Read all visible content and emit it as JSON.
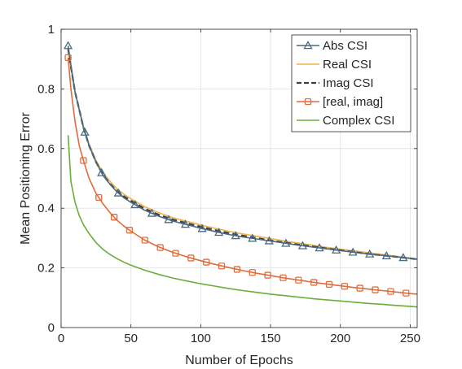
{
  "chart_data": {
    "type": "line",
    "title": "",
    "xlabel": "Number of Epochs",
    "ylabel": "Mean Positioning Error",
    "xlim": [
      0,
      255
    ],
    "ylim": [
      0,
      1
    ],
    "xticks": [
      0,
      50,
      100,
      150,
      200,
      250
    ],
    "yticks": [
      0,
      0.2,
      0.4,
      0.6,
      0.8,
      1
    ],
    "xtick_labels": [
      "0",
      "50",
      "100",
      "150",
      "200",
      "250"
    ],
    "ytick_labels": [
      "0",
      "0.2",
      "0.4",
      "0.6",
      "0.8",
      "1"
    ],
    "grid": true,
    "legend_position": "top-right",
    "series": [
      {
        "name": "Abs CSI",
        "color": "#4a6b82",
        "style": "solid",
        "marker": "triangle",
        "x": [
          5,
          7,
          10,
          13,
          16,
          20,
          25,
          30,
          35,
          40,
          45,
          50,
          60,
          70,
          80,
          90,
          100,
          110,
          120,
          130,
          140,
          150,
          160,
          170,
          180,
          190,
          200,
          210,
          220,
          230,
          240,
          250,
          255
        ],
        "y": [
          0.945,
          0.88,
          0.79,
          0.73,
          0.67,
          0.61,
          0.555,
          0.51,
          0.48,
          0.455,
          0.435,
          0.42,
          0.393,
          0.373,
          0.357,
          0.345,
          0.333,
          0.322,
          0.312,
          0.304,
          0.297,
          0.29,
          0.283,
          0.276,
          0.27,
          0.264,
          0.258,
          0.252,
          0.247,
          0.242,
          0.237,
          0.232,
          0.229
        ],
        "marker_x": [
          5,
          17,
          29,
          41,
          53,
          65,
          77,
          89,
          101,
          113,
          125,
          137,
          149,
          161,
          173,
          185,
          197,
          209,
          221,
          233,
          245
        ]
      },
      {
        "name": "Real CSI",
        "color": "#f2b24a",
        "style": "solid",
        "marker": "none",
        "x": [
          5,
          7,
          10,
          13,
          16,
          20,
          25,
          30,
          35,
          40,
          45,
          50,
          60,
          70,
          80,
          90,
          100,
          110,
          120,
          130,
          140,
          150,
          160,
          170,
          180,
          190,
          200,
          210,
          220,
          230,
          240,
          250,
          255
        ],
        "y": [
          0.93,
          0.87,
          0.79,
          0.73,
          0.675,
          0.615,
          0.56,
          0.52,
          0.49,
          0.465,
          0.447,
          0.432,
          0.405,
          0.385,
          0.368,
          0.356,
          0.344,
          0.333,
          0.323,
          0.314,
          0.306,
          0.298,
          0.29,
          0.283,
          0.276,
          0.269,
          0.263,
          0.257,
          0.251,
          0.245,
          0.239,
          0.233,
          0.23
        ]
      },
      {
        "name": "Imag CSI",
        "color": "#404040",
        "style": "dashed",
        "marker": "none",
        "x": [
          5,
          7,
          10,
          13,
          16,
          20,
          25,
          30,
          35,
          40,
          45,
          50,
          60,
          70,
          80,
          90,
          100,
          110,
          120,
          130,
          140,
          150,
          160,
          170,
          180,
          190,
          200,
          210,
          220,
          230,
          240,
          250,
          255
        ],
        "y": [
          0.935,
          0.875,
          0.79,
          0.73,
          0.67,
          0.61,
          0.555,
          0.512,
          0.482,
          0.458,
          0.44,
          0.425,
          0.398,
          0.378,
          0.362,
          0.35,
          0.338,
          0.327,
          0.317,
          0.308,
          0.3,
          0.292,
          0.285,
          0.278,
          0.272,
          0.265,
          0.259,
          0.253,
          0.247,
          0.242,
          0.237,
          0.232,
          0.229
        ]
      },
      {
        "name": "[real, imag]",
        "color": "#e06c3c",
        "style": "solid",
        "marker": "square",
        "x": [
          5,
          7,
          10,
          13,
          16,
          20,
          25,
          30,
          35,
          40,
          45,
          50,
          60,
          70,
          80,
          90,
          100,
          110,
          120,
          130,
          140,
          150,
          160,
          170,
          180,
          190,
          200,
          210,
          220,
          230,
          240,
          250,
          255
        ],
        "y": [
          0.905,
          0.8,
          0.69,
          0.61,
          0.56,
          0.5,
          0.45,
          0.415,
          0.385,
          0.36,
          0.34,
          0.323,
          0.293,
          0.27,
          0.252,
          0.237,
          0.224,
          0.212,
          0.201,
          0.191,
          0.182,
          0.174,
          0.166,
          0.159,
          0.152,
          0.146,
          0.14,
          0.134,
          0.129,
          0.124,
          0.119,
          0.114,
          0.112
        ],
        "marker_x": [
          5,
          16,
          27,
          38,
          49,
          60,
          71,
          82,
          93,
          104,
          115,
          126,
          137,
          148,
          159,
          170,
          181,
          192,
          203,
          214,
          225,
          236,
          247
        ]
      },
      {
        "name": "Complex CSI",
        "color": "#6aad3a",
        "style": "solid",
        "marker": "none",
        "x": [
          5,
          7,
          10,
          13,
          16,
          20,
          25,
          30,
          35,
          40,
          45,
          50,
          60,
          70,
          80,
          90,
          100,
          110,
          120,
          130,
          140,
          150,
          160,
          170,
          180,
          190,
          200,
          210,
          220,
          230,
          240,
          250,
          255
        ],
        "y": [
          0.645,
          0.49,
          0.42,
          0.375,
          0.345,
          0.315,
          0.285,
          0.262,
          0.245,
          0.231,
          0.219,
          0.209,
          0.192,
          0.178,
          0.166,
          0.156,
          0.147,
          0.139,
          0.131,
          0.124,
          0.118,
          0.112,
          0.107,
          0.102,
          0.097,
          0.093,
          0.089,
          0.085,
          0.081,
          0.078,
          0.074,
          0.071,
          0.069
        ]
      }
    ]
  }
}
